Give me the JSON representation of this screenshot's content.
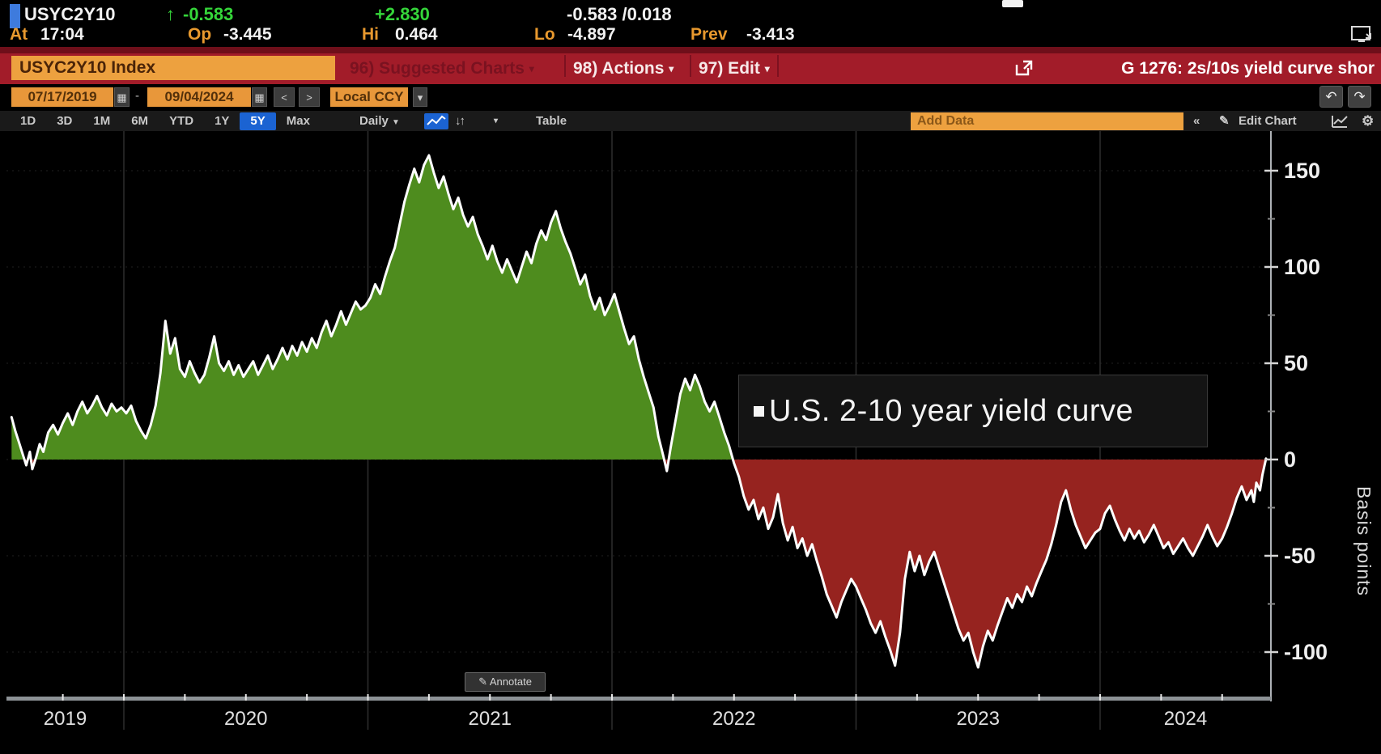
{
  "quote_bar": {
    "ticker": "USYC2Y10",
    "direction_arrow": "↑",
    "last": "-0.583",
    "change": "+2.830",
    "bid_ask": "-0.583 /0.018",
    "at_label": "At",
    "at_time": "17:04",
    "op_label": "Op",
    "op_value": "-3.445",
    "hi_label": "Hi",
    "hi_value": "0.464",
    "lo_label": "Lo",
    "lo_value": "-4.897",
    "prev_label": "Prev",
    "prev_value": "-3.413"
  },
  "command_bar": {
    "security": "USYC2Y10 Index",
    "suggested_charts": "96) Suggested Charts",
    "actions": "98) Actions",
    "edit": "97) Edit",
    "chart_id_title": "G 1276: 2s/10s yield curve shor"
  },
  "date_bar": {
    "start_date": "07/17/2019",
    "range_separator": "-",
    "end_date": "09/04/2024",
    "prev_label": "<",
    "next_label": ">",
    "currency": "Local CCY"
  },
  "toolbar": {
    "ranges": [
      "1D",
      "3D",
      "1M",
      "6M",
      "YTD",
      "1Y",
      "5Y",
      "Max"
    ],
    "selected_range": "5Y",
    "frequency": "Daily",
    "table_label": "Table",
    "add_data_placeholder": "Add Data",
    "edit_chart_label": "Edit Chart"
  },
  "icons": {
    "undo": "↶",
    "redo": "↷",
    "calendar": "▦",
    "dropdown": "▾",
    "frequency_caret": "▼",
    "sort": "↓↑",
    "collapse": "«",
    "pencil": "✎",
    "gear": "⚙"
  },
  "chart": {
    "annotation": "U.S. 2-10 year yield curve",
    "annotate_button": "Annotate",
    "axis_label": "Basis points"
  },
  "chart_data": {
    "type": "area",
    "title": "U.S. 2-10 year yield curve",
    "ylabel": "Basis points",
    "xlabel": "",
    "x_range_labels": [
      "07/17/2019",
      "09/04/2024"
    ],
    "xlim_decimal_years": [
      2019.537,
      2024.683
    ],
    "ylim": [
      -125,
      170
    ],
    "y_ticks": [
      150,
      100,
      50,
      0,
      -50,
      -100
    ],
    "y_minor_ticks": [
      125,
      75,
      25,
      -25,
      -75
    ],
    "x_tick_years": [
      "2019",
      "2020",
      "2021",
      "2022",
      "2023",
      "2024"
    ],
    "year_gridlines": [
      2020,
      2021,
      2022,
      2023,
      2024
    ],
    "zero_baseline": 0,
    "positive_fill": "#4e8c1e",
    "negative_fill": "#96231f",
    "line_color": "#ffffff",
    "grid": true,
    "legend_position": "inside-right",
    "points": [
      [
        2019.54,
        22
      ],
      [
        2019.555,
        15
      ],
      [
        2019.57,
        9
      ],
      [
        2019.585,
        3
      ],
      [
        2019.6,
        -3
      ],
      [
        2019.615,
        4
      ],
      [
        2019.625,
        -5
      ],
      [
        2019.64,
        1
      ],
      [
        2019.655,
        8
      ],
      [
        2019.67,
        4
      ],
      [
        2019.69,
        14
      ],
      [
        2019.71,
        18
      ],
      [
        2019.73,
        13
      ],
      [
        2019.75,
        19
      ],
      [
        2019.77,
        24
      ],
      [
        2019.79,
        18
      ],
      [
        2019.81,
        25
      ],
      [
        2019.83,
        30
      ],
      [
        2019.85,
        24
      ],
      [
        2019.87,
        28
      ],
      [
        2019.89,
        33
      ],
      [
        2019.91,
        27
      ],
      [
        2019.93,
        23
      ],
      [
        2019.95,
        29
      ],
      [
        2019.97,
        25
      ],
      [
        2019.99,
        27
      ],
      [
        2020.01,
        24
      ],
      [
        2020.03,
        28
      ],
      [
        2020.05,
        20
      ],
      [
        2020.07,
        15
      ],
      [
        2020.09,
        11
      ],
      [
        2020.11,
        18
      ],
      [
        2020.13,
        28
      ],
      [
        2020.15,
        45
      ],
      [
        2020.17,
        72
      ],
      [
        2020.19,
        55
      ],
      [
        2020.21,
        63
      ],
      [
        2020.23,
        47
      ],
      [
        2020.25,
        43
      ],
      [
        2020.27,
        51
      ],
      [
        2020.29,
        45
      ],
      [
        2020.31,
        40
      ],
      [
        2020.33,
        44
      ],
      [
        2020.35,
        53
      ],
      [
        2020.37,
        64
      ],
      [
        2020.39,
        50
      ],
      [
        2020.41,
        46
      ],
      [
        2020.43,
        51
      ],
      [
        2020.45,
        44
      ],
      [
        2020.47,
        49
      ],
      [
        2020.49,
        43
      ],
      [
        2020.51,
        47
      ],
      [
        2020.53,
        51
      ],
      [
        2020.55,
        44
      ],
      [
        2020.57,
        49
      ],
      [
        2020.59,
        54
      ],
      [
        2020.61,
        47
      ],
      [
        2020.63,
        52
      ],
      [
        2020.65,
        58
      ],
      [
        2020.67,
        52
      ],
      [
        2020.69,
        59
      ],
      [
        2020.71,
        54
      ],
      [
        2020.73,
        61
      ],
      [
        2020.75,
        56
      ],
      [
        2020.77,
        63
      ],
      [
        2020.79,
        58
      ],
      [
        2020.81,
        66
      ],
      [
        2020.83,
        72
      ],
      [
        2020.85,
        64
      ],
      [
        2020.87,
        70
      ],
      [
        2020.89,
        77
      ],
      [
        2020.91,
        70
      ],
      [
        2020.93,
        76
      ],
      [
        2020.95,
        82
      ],
      [
        2020.97,
        78
      ],
      [
        2020.99,
        80
      ],
      [
        2021.01,
        84
      ],
      [
        2021.03,
        91
      ],
      [
        2021.05,
        86
      ],
      [
        2021.07,
        95
      ],
      [
        2021.09,
        103
      ],
      [
        2021.11,
        110
      ],
      [
        2021.13,
        122
      ],
      [
        2021.15,
        134
      ],
      [
        2021.17,
        143
      ],
      [
        2021.19,
        151
      ],
      [
        2021.21,
        144
      ],
      [
        2021.23,
        153
      ],
      [
        2021.25,
        158
      ],
      [
        2021.27,
        149
      ],
      [
        2021.29,
        141
      ],
      [
        2021.31,
        147
      ],
      [
        2021.33,
        138
      ],
      [
        2021.35,
        130
      ],
      [
        2021.37,
        136
      ],
      [
        2021.39,
        127
      ],
      [
        2021.41,
        121
      ],
      [
        2021.43,
        126
      ],
      [
        2021.45,
        117
      ],
      [
        2021.47,
        111
      ],
      [
        2021.49,
        104
      ],
      [
        2021.51,
        111
      ],
      [
        2021.53,
        103
      ],
      [
        2021.55,
        97
      ],
      [
        2021.57,
        104
      ],
      [
        2021.59,
        98
      ],
      [
        2021.61,
        92
      ],
      [
        2021.63,
        100
      ],
      [
        2021.65,
        108
      ],
      [
        2021.67,
        102
      ],
      [
        2021.69,
        112
      ],
      [
        2021.71,
        119
      ],
      [
        2021.73,
        114
      ],
      [
        2021.75,
        123
      ],
      [
        2021.77,
        129
      ],
      [
        2021.79,
        120
      ],
      [
        2021.81,
        113
      ],
      [
        2021.83,
        107
      ],
      [
        2021.85,
        99
      ],
      [
        2021.87,
        91
      ],
      [
        2021.89,
        96
      ],
      [
        2021.91,
        85
      ],
      [
        2021.93,
        78
      ],
      [
        2021.95,
        84
      ],
      [
        2021.97,
        75
      ],
      [
        2021.99,
        80
      ],
      [
        2022.01,
        86
      ],
      [
        2022.03,
        77
      ],
      [
        2022.05,
        68
      ],
      [
        2022.07,
        60
      ],
      [
        2022.09,
        64
      ],
      [
        2022.11,
        52
      ],
      [
        2022.13,
        43
      ],
      [
        2022.15,
        35
      ],
      [
        2022.17,
        27
      ],
      [
        2022.19,
        12
      ],
      [
        2022.21,
        2
      ],
      [
        2022.225,
        -6
      ],
      [
        2022.24,
        6
      ],
      [
        2022.26,
        20
      ],
      [
        2022.28,
        34
      ],
      [
        2022.3,
        42
      ],
      [
        2022.32,
        36
      ],
      [
        2022.34,
        44
      ],
      [
        2022.36,
        38
      ],
      [
        2022.38,
        30
      ],
      [
        2022.4,
        25
      ],
      [
        2022.42,
        30
      ],
      [
        2022.44,
        22
      ],
      [
        2022.46,
        14
      ],
      [
        2022.48,
        7
      ],
      [
        2022.5,
        -2
      ],
      [
        2022.52,
        -9
      ],
      [
        2022.54,
        -19
      ],
      [
        2022.56,
        -26
      ],
      [
        2022.58,
        -21
      ],
      [
        2022.6,
        -31
      ],
      [
        2022.62,
        -25
      ],
      [
        2022.64,
        -36
      ],
      [
        2022.66,
        -30
      ],
      [
        2022.68,
        -18
      ],
      [
        2022.7,
        -33
      ],
      [
        2022.72,
        -42
      ],
      [
        2022.74,
        -35
      ],
      [
        2022.76,
        -46
      ],
      [
        2022.78,
        -41
      ],
      [
        2022.8,
        -50
      ],
      [
        2022.82,
        -44
      ],
      [
        2022.84,
        -53
      ],
      [
        2022.86,
        -61
      ],
      [
        2022.88,
        -70
      ],
      [
        2022.9,
        -76
      ],
      [
        2022.92,
        -82
      ],
      [
        2022.94,
        -74
      ],
      [
        2022.96,
        -68
      ],
      [
        2022.98,
        -62
      ],
      [
        2023.0,
        -66
      ],
      [
        2023.02,
        -72
      ],
      [
        2023.04,
        -78
      ],
      [
        2023.06,
        -85
      ],
      [
        2023.08,
        -90
      ],
      [
        2023.1,
        -84
      ],
      [
        2023.12,
        -92
      ],
      [
        2023.14,
        -99
      ],
      [
        2023.16,
        -107
      ],
      [
        2023.18,
        -90
      ],
      [
        2023.2,
        -62
      ],
      [
        2023.22,
        -48
      ],
      [
        2023.24,
        -58
      ],
      [
        2023.26,
        -50
      ],
      [
        2023.28,
        -60
      ],
      [
        2023.3,
        -53
      ],
      [
        2023.32,
        -48
      ],
      [
        2023.34,
        -56
      ],
      [
        2023.36,
        -64
      ],
      [
        2023.38,
        -72
      ],
      [
        2023.4,
        -80
      ],
      [
        2023.42,
        -88
      ],
      [
        2023.44,
        -94
      ],
      [
        2023.46,
        -90
      ],
      [
        2023.48,
        -100
      ],
      [
        2023.5,
        -108
      ],
      [
        2023.52,
        -97
      ],
      [
        2023.54,
        -89
      ],
      [
        2023.56,
        -94
      ],
      [
        2023.58,
        -86
      ],
      [
        2023.6,
        -79
      ],
      [
        2023.62,
        -72
      ],
      [
        2023.64,
        -77
      ],
      [
        2023.66,
        -70
      ],
      [
        2023.68,
        -74
      ],
      [
        2023.7,
        -66
      ],
      [
        2023.72,
        -71
      ],
      [
        2023.74,
        -64
      ],
      [
        2023.76,
        -58
      ],
      [
        2023.78,
        -52
      ],
      [
        2023.8,
        -44
      ],
      [
        2023.82,
        -34
      ],
      [
        2023.84,
        -22
      ],
      [
        2023.86,
        -16
      ],
      [
        2023.88,
        -26
      ],
      [
        2023.9,
        -34
      ],
      [
        2023.92,
        -40
      ],
      [
        2023.94,
        -46
      ],
      [
        2023.96,
        -42
      ],
      [
        2023.98,
        -38
      ],
      [
        2024.0,
        -36
      ],
      [
        2024.02,
        -28
      ],
      [
        2024.04,
        -24
      ],
      [
        2024.06,
        -31
      ],
      [
        2024.08,
        -37
      ],
      [
        2024.1,
        -42
      ],
      [
        2024.12,
        -36
      ],
      [
        2024.14,
        -41
      ],
      [
        2024.16,
        -37
      ],
      [
        2024.18,
        -43
      ],
      [
        2024.2,
        -39
      ],
      [
        2024.22,
        -34
      ],
      [
        2024.24,
        -40
      ],
      [
        2024.26,
        -46
      ],
      [
        2024.28,
        -43
      ],
      [
        2024.3,
        -49
      ],
      [
        2024.32,
        -45
      ],
      [
        2024.34,
        -41
      ],
      [
        2024.36,
        -46
      ],
      [
        2024.38,
        -50
      ],
      [
        2024.4,
        -45
      ],
      [
        2024.42,
        -40
      ],
      [
        2024.44,
        -34
      ],
      [
        2024.46,
        -40
      ],
      [
        2024.48,
        -45
      ],
      [
        2024.5,
        -41
      ],
      [
        2024.52,
        -35
      ],
      [
        2024.54,
        -28
      ],
      [
        2024.56,
        -20
      ],
      [
        2024.58,
        -14
      ],
      [
        2024.6,
        -21
      ],
      [
        2024.62,
        -16
      ],
      [
        2024.63,
        -22
      ],
      [
        2024.64,
        -12
      ],
      [
        2024.655,
        -16
      ],
      [
        2024.665,
        -8
      ],
      [
        2024.672,
        -4
      ],
      [
        2024.68,
        0.5
      ]
    ]
  }
}
